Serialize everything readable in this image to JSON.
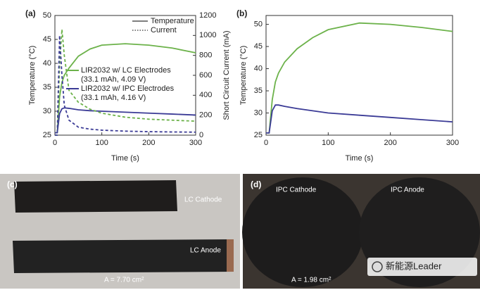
{
  "chart_data": [
    {
      "type": "line",
      "panel": "(a)",
      "xlabel": "Time (s)",
      "ylabel": "Temperature (°C)",
      "y2label": "Short Circuit Current (mA)",
      "x": [
        0,
        5,
        10,
        15,
        20,
        30,
        50,
        75,
        100,
        150,
        200,
        250,
        300
      ],
      "xlim": [
        0,
        300
      ],
      "xticks": [
        0,
        100,
        200,
        300
      ],
      "ylim": [
        25,
        50
      ],
      "yticks": [
        25,
        30,
        35,
        40,
        45,
        50
      ],
      "y2lim": [
        0,
        1200
      ],
      "y2ticks": [
        0,
        200,
        400,
        600,
        800,
        1000,
        1200
      ],
      "series": [
        {
          "color": "#6cb24a",
          "dash": "solid",
          "values": [
            25.5,
            25.5,
            33,
            36,
            37.5,
            39,
            41.5,
            43,
            43.8,
            44.1,
            43.8,
            43.2,
            42.2
          ]
        },
        {
          "color": "#3b3b96",
          "dash": "solid",
          "values": [
            25.5,
            25.5,
            29.5,
            30.5,
            30.7,
            30.6,
            30.3,
            30.1,
            30,
            29.8,
            29.6,
            29.4,
            29.2
          ]
        },
        {
          "color": "#6cb24a",
          "dash": "dashed",
          "axis": "y2",
          "values": [
            0,
            0,
            700,
            1060,
            800,
            450,
            330,
            260,
            220,
            180,
            160,
            150,
            140
          ]
        },
        {
          "color": "#3b3b96",
          "dash": "dashed",
          "axis": "y2",
          "values": [
            0,
            0,
            1000,
            600,
            300,
            150,
            80,
            60,
            50,
            40,
            35,
            32,
            30
          ]
        }
      ],
      "legend": [
        {
          "label": "Temperature",
          "dash": "solid"
        },
        {
          "label": "Current",
          "dash": "dotted"
        }
      ],
      "annotations": [
        {
          "text": "LIR2032 w/ LC Electrodes",
          "color": "#6cb24a"
        },
        {
          "text": "(33.1 mAh, 4.09 V)"
        },
        {
          "text": "LIR2032 w/ IPC Electrodes",
          "color": "#3b3b96"
        },
        {
          "text": "(33.1 mAh, 4.16 V)"
        }
      ]
    },
    {
      "type": "line",
      "panel": "(b)",
      "xlabel": "Time (s)",
      "ylabel": "Temperature (°C)",
      "x": [
        0,
        5,
        10,
        15,
        20,
        30,
        50,
        75,
        100,
        150,
        200,
        250,
        300
      ],
      "xlim": [
        0,
        300
      ],
      "xticks": [
        0,
        100,
        200,
        300
      ],
      "ylim": [
        25,
        52
      ],
      "yticks": [
        25,
        30,
        35,
        40,
        45,
        50
      ],
      "series": [
        {
          "color": "#6cb24a",
          "dash": "solid",
          "values": [
            25.5,
            25.5,
            33,
            37,
            39,
            41.5,
            44.5,
            47,
            48.8,
            50.3,
            50,
            49.3,
            48.4
          ]
        },
        {
          "color": "#3b3b96",
          "dash": "solid",
          "values": [
            25.5,
            25.5,
            30.5,
            31.8,
            31.8,
            31.5,
            31,
            30.5,
            30,
            29.5,
            29,
            28.5,
            28
          ]
        }
      ]
    }
  ],
  "panels": [
    {
      "label": "(c)",
      "texts": [
        "LC Cathode",
        "LC Anode",
        "A = 7.70 cm²"
      ]
    },
    {
      "label": "(d)",
      "texts": [
        "IPC Cathode",
        "IPC Anode",
        "A = 1.98 cm²"
      ]
    }
  ],
  "watermark": "新能源Leader"
}
